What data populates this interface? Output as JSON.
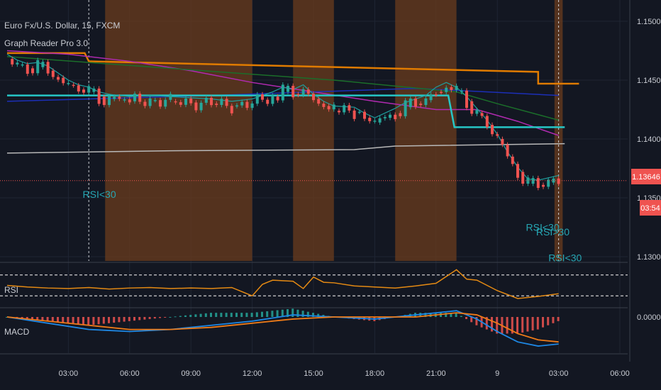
{
  "header": {
    "symbol_line": "Euro Fx/U.S. Dollar, 15, FXCM",
    "indicator_name": "Graph Reader Pro 3.0"
  },
  "colors": {
    "background": "#131722",
    "grid": "#1f2533",
    "session_band": "#6b3c1e",
    "candle_up": "#26a69a",
    "candle_down": "#ef5350",
    "orange_line": "#e07b00",
    "magenta_line": "#b02ab0",
    "blue_line": "#1c2fb8",
    "green_line": "#1b6e2a",
    "cyan_line": "#26c6c6",
    "white_line": "#b8b8b8",
    "rsi_line": "#e58a13",
    "macd_line": "#1e88e5",
    "signal_line": "#ef7b18",
    "price_tag": "#ef5350",
    "text": "#c9ccd3"
  },
  "chart_data": [
    {
      "type": "line",
      "title": "Euro Fx/U.S. Dollar, 15, FXCM",
      "ylim": [
        1.1295,
        1.1515
      ],
      "y_ticks": [
        "1.15000",
        "1.14500",
        "1.14000",
        "1.13500",
        "1.13000"
      ],
      "x_ticks": [
        "03:00",
        "06:00",
        "09:00",
        "12:00",
        "15:00",
        "18:00",
        "21:00",
        "9",
        "03:00",
        "06:00"
      ],
      "last_price": "1.13646",
      "countdown": "03:54",
      "session_shading_hours": [
        [
          4.8,
          12.0
        ],
        [
          14.0,
          16.0
        ],
        [
          19.0,
          22.0
        ],
        [
          26.8,
          27.2
        ]
      ],
      "close_series": {
        "x_hours": [
          0,
          0.5,
          1,
          1.5,
          2,
          2.5,
          3,
          3.5,
          4,
          4.5,
          5,
          5.5,
          6,
          7,
          8,
          9,
          10,
          11,
          12,
          13,
          13.5,
          14,
          14.5,
          15,
          15.5,
          16,
          17,
          17.5,
          18,
          18.5,
          19,
          19.5,
          20,
          20.5,
          21,
          21.5,
          22,
          22.5,
          23,
          23.5,
          24,
          24.5,
          25,
          25.5,
          26,
          26.5,
          27
        ],
        "values": [
          1.1468,
          1.1463,
          1.146,
          1.1461,
          1.1458,
          1.1452,
          1.1446,
          1.1442,
          1.144,
          1.1436,
          1.1434,
          1.1433,
          1.1432,
          1.1433,
          1.1432,
          1.1431,
          1.143,
          1.1428,
          1.143,
          1.1436,
          1.144,
          1.1438,
          1.1442,
          1.1434,
          1.1428,
          1.1424,
          1.1423,
          1.1418,
          1.1414,
          1.1418,
          1.1422,
          1.1427,
          1.143,
          1.1433,
          1.144,
          1.1444,
          1.144,
          1.1432,
          1.1422,
          1.1412,
          1.14,
          1.1385,
          1.1372,
          1.1362,
          1.1361,
          1.1363,
          1.1365
        ]
      },
      "lines": [
        {
          "key": "orange_line",
          "x_hours": [
            0,
            3.8,
            4.0,
            26.0,
            26.0,
            28.0
          ],
          "values": [
            1.1473,
            1.1473,
            1.1466,
            1.1457,
            1.1447,
            1.1447
          ]
        },
        {
          "key": "magenta_line",
          "x_hours": [
            0,
            3,
            6,
            9,
            12,
            15,
            18,
            21,
            23,
            25,
            27
          ],
          "values": [
            1.1475,
            1.1472,
            1.1466,
            1.1458,
            1.1448,
            1.144,
            1.1432,
            1.1425,
            1.1425,
            1.1415,
            1.1403
          ]
        },
        {
          "key": "blue_line",
          "x_hours": [
            0,
            10,
            20,
            27
          ],
          "values": [
            1.1432,
            1.1437,
            1.1443,
            1.1437
          ]
        },
        {
          "key": "green_line",
          "x_hours": [
            0,
            8,
            16,
            22,
            24,
            27
          ],
          "values": [
            1.147,
            1.146,
            1.145,
            1.144,
            1.143,
            1.1416
          ]
        },
        {
          "key": "cyan_line",
          "x_hours": [
            0,
            14.8,
            21.6,
            21.9,
            27.3
          ],
          "values": [
            1.1437,
            1.1437,
            1.1437,
            1.141,
            1.141
          ]
        },
        {
          "key": "white_line",
          "x_hours": [
            0,
            8,
            17,
            19,
            27.3
          ],
          "values": [
            1.1388,
            1.139,
            1.1391,
            1.1394,
            1.1396
          ]
        }
      ],
      "annotations": [
        {
          "text": "RSI<30",
          "x_hour": 3.7,
          "y": 1.135,
          "color": "#26a6b3"
        },
        {
          "text": "RSI<30",
          "x_hour": 25.4,
          "y": 1.1322,
          "color": "#26a6b3"
        },
        {
          "text": "RSI>30",
          "x_hour": 25.9,
          "y": 1.1318,
          "color": "#26a6b3"
        },
        {
          "text": "RSI<30",
          "x_hour": 26.5,
          "y": 1.1296,
          "color": "#26a6b3"
        }
      ]
    },
    {
      "type": "line",
      "title": "RSI",
      "ylim": [
        10,
        90
      ],
      "levels": [
        70,
        30
      ],
      "x_hours": [
        0,
        1,
        2,
        3,
        4,
        5,
        6,
        7,
        8,
        9,
        10,
        11,
        12,
        12.5,
        13,
        14,
        14.5,
        15,
        15.5,
        16,
        17,
        18,
        19,
        20,
        21,
        22,
        22.5,
        23,
        24,
        25,
        26,
        27
      ],
      "values": [
        50,
        47,
        45,
        44,
        46,
        43,
        45,
        46,
        44,
        45,
        44,
        46,
        30,
        52,
        60,
        58,
        44,
        66,
        56,
        55,
        49,
        47,
        45,
        49,
        54,
        80,
        62,
        60,
        40,
        25,
        29,
        34
      ]
    },
    {
      "type": "line",
      "title": "MACD",
      "ylim": [
        -0.0016,
        0.0004
      ],
      "zero_label": "0.0000",
      "x_hours": [
        0,
        2,
        4,
        6,
        8,
        10,
        12,
        14,
        16,
        18,
        20,
        22,
        23,
        24,
        25,
        26,
        27
      ],
      "macd": [
        0.0,
        -0.0003,
        -0.0006,
        -0.0007,
        -0.0006,
        -0.0004,
        -0.0002,
        0.0001,
        0.0,
        -0.0001,
        0.0001,
        0.0003,
        -0.0001,
        -0.0007,
        -0.0012,
        -0.0014,
        -0.0013
      ],
      "signal": [
        0.0,
        -0.0002,
        -0.0004,
        -0.0006,
        -0.0006,
        -0.0005,
        -0.0003,
        -0.0001,
        0.0,
        0.0,
        0.0,
        0.0002,
        0.0001,
        -0.0003,
        -0.0008,
        -0.0011,
        -0.0012
      ]
    }
  ]
}
